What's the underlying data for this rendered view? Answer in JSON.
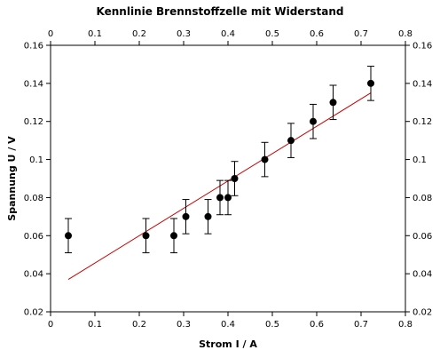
{
  "chart_data": {
    "type": "scatter",
    "title": "Kennlinie Brennstoffzelle mit Widerstand",
    "xlabel": "Strom I / A",
    "ylabel": "Spannung U / V",
    "xlim": [
      0,
      0.8
    ],
    "ylim": [
      0.02,
      0.16
    ],
    "x_ticks": [
      0,
      0.1,
      0.2,
      0.3,
      0.4,
      0.5,
      0.6,
      0.7,
      0.8
    ],
    "x_tick_labels": [
      "0",
      "0.1",
      "0.2",
      "0.3",
      "0.4",
      "0.5",
      "0.6",
      "0.7",
      "0.8"
    ],
    "y_ticks": [
      0.02,
      0.04,
      0.06,
      0.08,
      0.1,
      0.12,
      0.14,
      0.16
    ],
    "y_tick_labels": [
      "0.02",
      "0.04",
      "0.06",
      "0.08",
      "0.1",
      "0.12",
      "0.14",
      "0.16"
    ],
    "mirror_axes_top_right": true,
    "grid": false,
    "series": [
      {
        "color": "#000000",
        "marker": "circle",
        "x": [
          0.04,
          0.215,
          0.278,
          0.305,
          0.355,
          0.382,
          0.4,
          0.415,
          0.483,
          0.542,
          0.592,
          0.637,
          0.722
        ],
        "y": [
          0.06,
          0.06,
          0.06,
          0.07,
          0.07,
          0.08,
          0.08,
          0.09,
          0.1,
          0.11,
          0.12,
          0.13,
          0.14
        ],
        "error_y": [
          0.009,
          0.009,
          0.009,
          0.009,
          0.009,
          0.009,
          0.009,
          0.009,
          0.009,
          0.009,
          0.009,
          0.009,
          0.009
        ]
      },
      {
        "type": "line",
        "color": "#cc0000",
        "x": [
          0.04,
          0.722
        ],
        "y": [
          0.037,
          0.135
        ]
      }
    ]
  }
}
